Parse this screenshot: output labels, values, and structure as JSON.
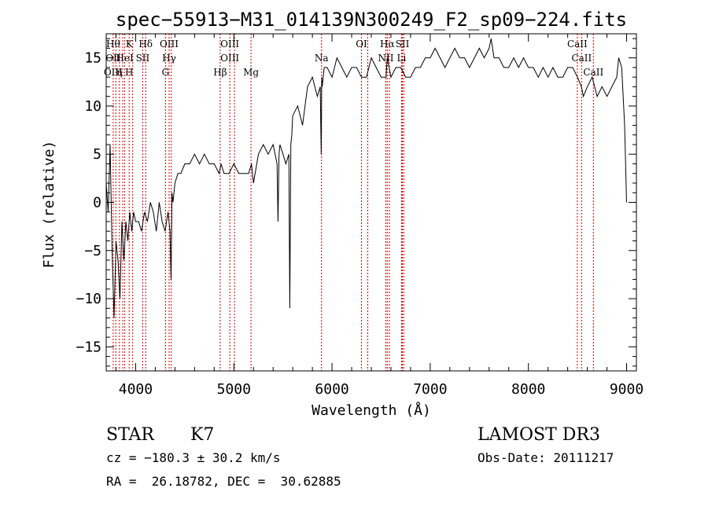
{
  "chart_data": {
    "type": "line",
    "title": "spec−55913−M31_014139N300249_F2_sp09−224.fits",
    "xlabel": "Wavelength (Å)",
    "ylabel": "Flux (relative)",
    "xlim": [
      3700,
      9100
    ],
    "ylim": [
      -17.5,
      17.5
    ],
    "xticks": [
      4000,
      5000,
      6000,
      7000,
      8000,
      9000
    ],
    "yticks": [
      -15,
      -10,
      -5,
      0,
      5,
      10,
      15
    ],
    "series": [
      {
        "name": "spectrum",
        "x": [
          3700,
          3720,
          3740,
          3760,
          3780,
          3800,
          3820,
          3840,
          3860,
          3880,
          3900,
          3920,
          3940,
          3960,
          3980,
          4000,
          4030,
          4060,
          4090,
          4120,
          4150,
          4180,
          4210,
          4240,
          4270,
          4300,
          4330,
          4350,
          4360,
          4365,
          4370,
          4380,
          4400,
          4430,
          4460,
          4500,
          4550,
          4600,
          4650,
          4700,
          4750,
          4800,
          4850,
          4870,
          4900,
          4950,
          5000,
          5050,
          5100,
          5150,
          5180,
          5200,
          5250,
          5300,
          5350,
          5400,
          5440,
          5450,
          5460,
          5470,
          5500,
          5530,
          5560,
          5570,
          5580,
          5590,
          5600,
          5650,
          5700,
          5750,
          5800,
          5850,
          5880,
          5890,
          5895,
          5900,
          5920,
          5950,
          6000,
          6050,
          6100,
          6150,
          6200,
          6250,
          6300,
          6350,
          6400,
          6450,
          6500,
          6550,
          6563,
          6600,
          6650,
          6700,
          6750,
          6800,
          6850,
          6900,
          6950,
          7000,
          7050,
          7100,
          7150,
          7200,
          7250,
          7300,
          7350,
          7400,
          7450,
          7500,
          7550,
          7600,
          7620,
          7650,
          7700,
          7750,
          7800,
          7850,
          7900,
          7950,
          8000,
          8050,
          8100,
          8150,
          8200,
          8250,
          8300,
          8350,
          8400,
          8450,
          8500,
          8540,
          8560,
          8600,
          8650,
          8700,
          8750,
          8800,
          8850,
          8900,
          8920,
          8950,
          8980,
          9000
        ],
        "values": [
          2,
          -1,
          6,
          -5,
          -12,
          -4,
          -6,
          -10,
          -2,
          -6,
          -2,
          -4,
          -1,
          -3,
          -1,
          -2,
          -2,
          -3,
          -1,
          -2,
          0,
          -1,
          -3,
          0,
          -2,
          -3,
          -1,
          -3,
          -8,
          -4,
          1,
          0,
          2,
          3,
          3,
          4,
          4,
          5,
          4,
          5,
          4,
          4,
          3,
          4,
          3,
          3,
          4,
          3,
          3,
          3,
          4,
          2,
          5,
          6,
          5,
          6,
          4,
          -2,
          5,
          6,
          5,
          4,
          5,
          -11,
          6,
          7,
          9,
          10,
          8,
          12,
          13,
          11,
          12,
          5,
          13,
          12,
          14,
          14,
          13,
          15,
          14,
          13,
          14,
          14,
          13,
          13,
          15,
          14,
          13,
          13,
          15,
          13,
          14,
          14,
          13,
          13,
          14,
          14,
          15,
          15,
          16,
          15,
          14,
          15,
          16,
          15,
          15,
          14,
          15,
          16,
          15,
          16,
          17,
          15,
          15,
          14,
          14,
          15,
          14,
          15,
          14,
          14,
          13,
          14,
          13,
          14,
          13,
          13,
          14,
          14,
          13,
          12,
          11,
          12,
          13,
          11,
          12,
          11,
          12,
          13,
          15,
          14,
          8,
          0
        ]
      }
    ],
    "lines": [
      {
        "w": 3771,
        "top": "Hθ",
        "mid": "OII",
        "bot": "OIII"
      },
      {
        "w": 3798,
        "top": "",
        "mid": "",
        "bot": ""
      },
      {
        "w": 3835,
        "top": "",
        "mid": "",
        "bot": "η"
      },
      {
        "w": 3869,
        "top": "",
        "mid": "",
        "bot": ""
      },
      {
        "w": 3889,
        "top": "",
        "mid": "HeI",
        "bot": ""
      },
      {
        "w": 3934,
        "top": "K",
        "mid": "",
        "bot": "H"
      },
      {
        "w": 3970,
        "top": "",
        "mid": "",
        "bot": ""
      },
      {
        "w": 4072,
        "top": "",
        "mid": "SII",
        "bot": ""
      },
      {
        "w": 4102,
        "top": "Hδ",
        "mid": "",
        "bot": ""
      },
      {
        "w": 4304,
        "top": "",
        "mid": "",
        "bot": "G"
      },
      {
        "w": 4341,
        "top": "OIII",
        "mid": "Hγ",
        "bot": ""
      },
      {
        "w": 4363,
        "top": "",
        "mid": "",
        "bot": ""
      },
      {
        "w": 4861,
        "top": "",
        "mid": "",
        "bot": "Hβ"
      },
      {
        "w": 4959,
        "top": "OIII",
        "mid": "OIII",
        "bot": ""
      },
      {
        "w": 5007,
        "top": "",
        "mid": "",
        "bot": ""
      },
      {
        "w": 5175,
        "top": "",
        "mid": "",
        "bot": "Mg"
      },
      {
        "w": 5893,
        "top": "",
        "mid": "Na",
        "bot": ""
      },
      {
        "w": 6300,
        "top": "OI",
        "mid": "",
        "bot": ""
      },
      {
        "w": 6364,
        "top": "",
        "mid": "",
        "bot": ""
      },
      {
        "w": 6548,
        "top": "",
        "mid": "NII",
        "bot": ""
      },
      {
        "w": 6563,
        "top": "Hα",
        "mid": "",
        "bot": ""
      },
      {
        "w": 6584,
        "top": "",
        "mid": "",
        "bot": ""
      },
      {
        "w": 6708,
        "top": "",
        "mid": "Li",
        "bot": ""
      },
      {
        "w": 6717,
        "top": "SII",
        "mid": "",
        "bot": ""
      },
      {
        "w": 6731,
        "top": "",
        "mid": "",
        "bot": ""
      },
      {
        "w": 8498,
        "top": "CaII",
        "mid": "",
        "bot": ""
      },
      {
        "w": 8542,
        "top": "",
        "mid": "CaII",
        "bot": ""
      },
      {
        "w": 8662,
        "top": "",
        "mid": "",
        "bot": "CaII"
      }
    ]
  },
  "info": {
    "object_class": "STAR",
    "subclass": "K7",
    "survey": "LAMOST DR3",
    "redshift": "cz = −180.3 ± 30.2 km/s",
    "obs_date": "Obs-Date: 20111217",
    "coords": "RA =  26.18782, DEC =  30.62885"
  },
  "colors": {
    "line_marker": "#cc0000",
    "spectrum": "#000000",
    "axes": "#000000"
  }
}
